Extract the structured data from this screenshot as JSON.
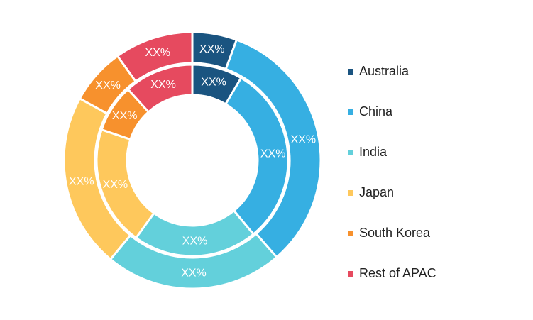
{
  "chart_data": {
    "type": "pie",
    "title": "",
    "categories": [
      "Australia",
      "China",
      "India",
      "Japan",
      "South Korea",
      "Rest of APAC"
    ],
    "colors": [
      "#1a5480",
      "#36afe2",
      "#63d0db",
      "#fec85c",
      "#f7912d",
      "#e64a5f"
    ],
    "series": [
      {
        "ring": "outer",
        "values": [
          5.6,
          33.0,
          22.4,
          22.0,
          7.1,
          9.9
        ],
        "labels": [
          "XX%",
          "XX%",
          "XX%",
          "XX%",
          "XX%",
          "XX%"
        ]
      },
      {
        "ring": "inner",
        "values": [
          8.5,
          30.5,
          21.0,
          20.2,
          8.1,
          11.7
        ],
        "labels": [
          "XX%",
          "XX%",
          "XX%",
          "XX%",
          "XX%",
          "XX%"
        ]
      }
    ],
    "legend": "right"
  }
}
